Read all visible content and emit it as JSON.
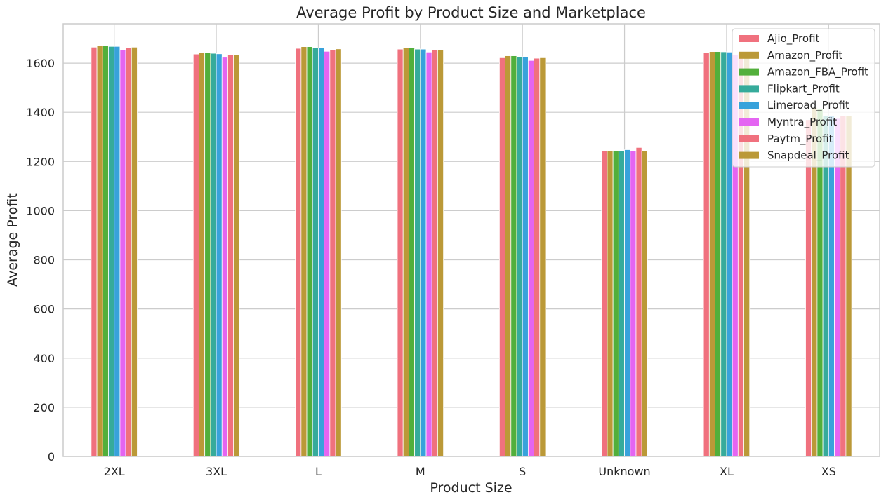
{
  "chart_data": {
    "type": "bar",
    "title": "Average Profit by Product Size and Marketplace",
    "xlabel": "Product Size",
    "ylabel": "Average Profit",
    "ylim": [
      0,
      1760
    ],
    "yticks": [
      0,
      200,
      400,
      600,
      800,
      1000,
      1200,
      1400,
      1600
    ],
    "grid": true,
    "legend_position": "top-right",
    "categories": [
      "2XL",
      "3XL",
      "L",
      "M",
      "S",
      "Unknown",
      "XL",
      "XS"
    ],
    "series": [
      {
        "name": "Ajio_Profit",
        "color": "#f0717e",
        "values": [
          1665,
          1637,
          1660,
          1657,
          1622,
          1243,
          1643,
          1370
        ]
      },
      {
        "name": "Amazon_Profit",
        "color": "#bb9938",
        "values": [
          1670,
          1643,
          1667,
          1662,
          1630,
          1243,
          1647,
          1420
        ]
      },
      {
        "name": "Amazon_FBA_Profit",
        "color": "#52af3b",
        "values": [
          1670,
          1642,
          1667,
          1662,
          1630,
          1243,
          1647,
          1415
        ]
      },
      {
        "name": "Flipkart_Profit",
        "color": "#36ab9b",
        "values": [
          1668,
          1640,
          1662,
          1657,
          1626,
          1243,
          1646,
          1385
        ]
      },
      {
        "name": "Limeroad_Profit",
        "color": "#38a2db",
        "values": [
          1668,
          1638,
          1662,
          1657,
          1626,
          1248,
          1645,
          1385
        ]
      },
      {
        "name": "Myntra_Profit",
        "color": "#e465f2",
        "values": [
          1655,
          1624,
          1648,
          1645,
          1611,
          1243,
          1635,
          1375
        ]
      },
      {
        "name": "Paytm_Profit",
        "color": "#f0717e",
        "values": [
          1662,
          1634,
          1655,
          1655,
          1620,
          1257,
          1640,
          1385
        ]
      },
      {
        "name": "Snapdeal_Profit",
        "color": "#bb9938",
        "values": [
          1665,
          1635,
          1658,
          1655,
          1622,
          1243,
          1640,
          1385
        ]
      }
    ]
  }
}
